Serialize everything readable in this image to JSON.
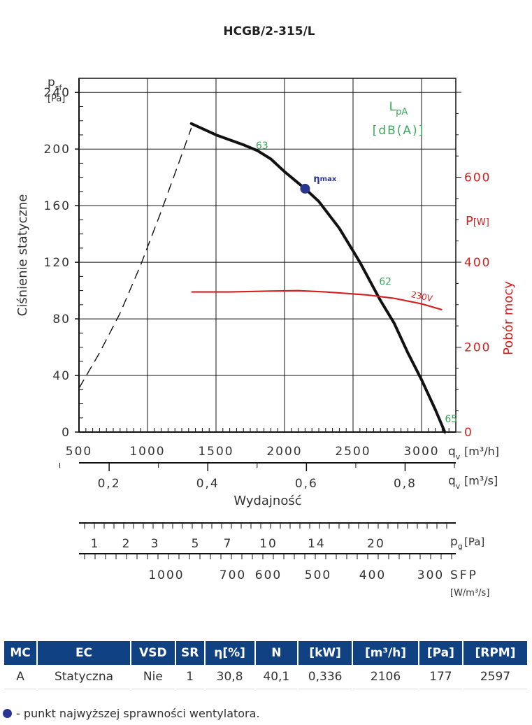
{
  "chart_data": {
    "type": "line",
    "title": "HCGB/2-315/L",
    "xlabel": "Wydajność",
    "ylabel": "Ciśnienie statyczne",
    "ylabel_symbol": "p",
    "ylabel_sub": "sf",
    "ylabel_unit": "[Pa]",
    "y2label": "Pobór mocy",
    "y2label_symbol": "P",
    "y2label_unit": "[W]",
    "lpa_label": "L",
    "lpa_sub": "pA",
    "lpa_unit": "[dB(A)]",
    "xlim": [
      500,
      3250
    ],
    "ylim": [
      0,
      250
    ],
    "y2lim": [
      0,
      833
    ],
    "x_ticks": [
      500,
      1000,
      1500,
      2000,
      2500,
      3000
    ],
    "x_tick_labels": [
      "500",
      "1000",
      "1500",
      "2000",
      "2500",
      "3000"
    ],
    "y_ticks": [
      0,
      40,
      80,
      120,
      160,
      200,
      240
    ],
    "y_tick_labels": [
      "0",
      "40",
      "80",
      "120",
      "160",
      "200",
      "240"
    ],
    "y2_ticks": [
      0,
      200,
      400,
      600
    ],
    "y2_tick_labels": [
      "0",
      "200",
      "400",
      "600"
    ],
    "x_axis_label": "q",
    "x_axis_sub": "v",
    "x_axis_unit": "[m³/h]",
    "series": [
      {
        "name": "pressure",
        "color": "#111111",
        "x": [
          1320,
          1500,
          1700,
          1800,
          1900,
          2000,
          2100,
          2150,
          2250,
          2400,
          2550,
          2700,
          2800,
          2900,
          3000,
          3100,
          3170
        ],
        "y": [
          218,
          210,
          203,
          199,
          193,
          184,
          176,
          172,
          163,
          144,
          120,
          93,
          77,
          56,
          37,
          16,
          0
        ]
      },
      {
        "name": "dashed-limit",
        "color": "#111111",
        "dashed": true,
        "x": [
          500,
          650,
          800,
          950,
          1100,
          1250,
          1320
        ],
        "y": [
          31,
          56,
          84,
          118,
          156,
          196,
          215
        ]
      },
      {
        "name": "power-230V",
        "color": "#d42020",
        "x": [
          1320,
          1600,
          1900,
          2100,
          2300,
          2600,
          2800,
          3000,
          3150
        ],
        "y2": [
          330,
          330,
          332,
          333,
          330,
          323,
          315,
          302,
          288
        ]
      }
    ],
    "annotations": [
      {
        "text": "63",
        "x": 1790,
        "y": 200,
        "color": "#3aa858"
      },
      {
        "text": "62",
        "x": 2690,
        "y": 104,
        "color": "#3aa858"
      },
      {
        "text": "65",
        "x": 3170,
        "y": 7,
        "color": "#3aa858"
      },
      {
        "text": "230V",
        "x": 2920,
        "y2": 318,
        "color": "#d42020"
      }
    ],
    "eta_max": {
      "x": 2150,
      "y": 172,
      "label": "η",
      "label_sub": "max"
    },
    "secondary_axes": [
      {
        "name": "qv-m3s",
        "label": "q",
        "label_sub": "v",
        "unit": "[m³/s]",
        "ticks": [
          0.2,
          0.4,
          0.6,
          0.8
        ],
        "tick_labels": [
          "0,2",
          "0,4",
          "0,6",
          "0,8"
        ],
        "minor_ticks": [
          0.1,
          0.3,
          0.5,
          0.7,
          0.9
        ]
      },
      {
        "name": "pg",
        "label": "p",
        "label_sub": "g",
        "unit": "[Pa]",
        "ticks": [
          1,
          2,
          3,
          5,
          7,
          10,
          14,
          20
        ],
        "tick_labels": [
          "1",
          "2",
          "3",
          "5",
          "7",
          "10",
          "14",
          "20"
        ]
      },
      {
        "name": "sfp",
        "label": "SFP",
        "unit": "[W/m³/s]",
        "ticks": [
          1000,
          700,
          600,
          500,
          400,
          300
        ],
        "tick_labels": [
          "1000",
          "700",
          "600",
          "500",
          "400",
          "300"
        ]
      }
    ]
  },
  "table": {
    "headers": [
      "MC",
      "EC",
      "VSD",
      "SR",
      "η[%]",
      "N",
      "[kW]",
      "[m³/h]",
      "[Pa]",
      "[RPM]"
    ],
    "row": [
      "A",
      "Statyczna",
      "Nie",
      "1",
      "30,8",
      "40,1",
      "0,336",
      "2106",
      "177",
      "2597"
    ]
  },
  "legend": {
    "text": "- punkt najwyższej sprawności wentylatora.",
    "dot_color": "#2a3591"
  },
  "colors": {
    "accent": "#0f4183",
    "pressure": "#111111",
    "power": "#d42020",
    "noise": "#3aa858",
    "eta": "#2a3591"
  }
}
